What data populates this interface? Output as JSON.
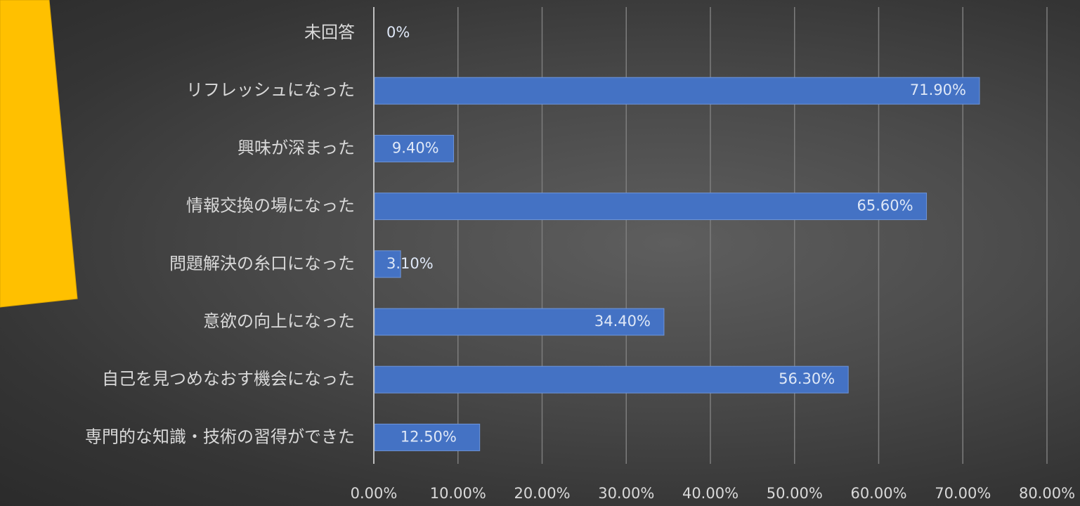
{
  "colors": {
    "bar": "#4472c4",
    "bar_edge": "#6e95da",
    "grid": "#7d7d7d",
    "axis": "#bfbfbf",
    "accent_shape": "#ffc000",
    "text": "#d9d9d9"
  },
  "chart_data": {
    "type": "bar",
    "orientation": "horizontal",
    "categories": [
      "未回答",
      "リフレッシュになった",
      "興味が深まった",
      "情報交換の場になった",
      "問題解決の糸口になった",
      "意欲の向上になった",
      "自己を見つめなおす機会になった",
      "専門的な知識・技術の習得ができた"
    ],
    "values": [
      0,
      71.9,
      9.4,
      65.6,
      3.1,
      34.4,
      56.3,
      12.5
    ],
    "data_labels": [
      "0%",
      "71.90%",
      "9.40%",
      "65.60%",
      "3.10%",
      "34.40%",
      "56.30%",
      "12.50%"
    ],
    "x_ticks": [
      "0.00%",
      "10.00%",
      "20.00%",
      "30.00%",
      "40.00%",
      "50.00%",
      "60.00%",
      "70.00%",
      "80.00%"
    ],
    "xlim": [
      0,
      80
    ],
    "grid": true,
    "legend": "none",
    "title": "",
    "xlabel": "",
    "ylabel": ""
  }
}
